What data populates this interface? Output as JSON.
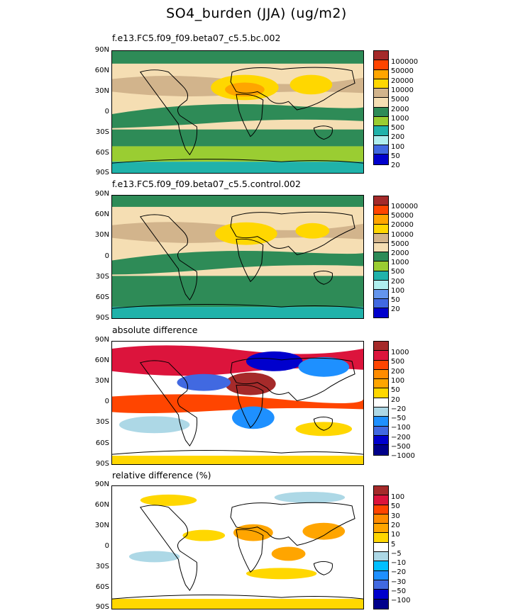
{
  "title": "SO4_burden (JJA) (ug/m2)",
  "lat_labels": [
    "90N",
    "60N",
    "30N",
    "0",
    "30S",
    "60S",
    "90S"
  ],
  "panels": [
    {
      "title": "f.e13.FC5.f09_f09.beta07_c5.5.bc.002",
      "levels": [
        "100000",
        "50000",
        "20000",
        "10000",
        "5000",
        "2000",
        "1000",
        "500",
        "200",
        "100",
        "50",
        "20"
      ],
      "colors": [
        "#a52a2a",
        "#ff4500",
        "#ffa500",
        "#ffd700",
        "#d2b48c",
        "#f5deb3",
        "#2e8b57",
        "#9acd32",
        "#20b2aa",
        "#afeeee",
        "#4169e1",
        "#0000cd"
      ],
      "base_color": "#f5deb3"
    },
    {
      "title": "f.e13.FC5.f09_f09.beta07_c5.5.control.002",
      "levels": [
        "100000",
        "50000",
        "20000",
        "10000",
        "5000",
        "2000",
        "1000",
        "500",
        "200",
        "100",
        "50",
        "20"
      ],
      "colors": [
        "#a52a2a",
        "#ff4500",
        "#ffa500",
        "#ffd700",
        "#d2b48c",
        "#f5deb3",
        "#2e8b57",
        "#9acd32",
        "#20b2aa",
        "#afeeee",
        "#6495ed",
        "#4169e1",
        "#0000cd"
      ],
      "base_color": "#f5deb3"
    },
    {
      "title": "absolute difference",
      "levels": [
        "1000",
        "500",
        "200",
        "100",
        "50",
        "20",
        "−20",
        "−50",
        "−100",
        "−200",
        "−500",
        "−1000"
      ],
      "colors": [
        "#a52a2a",
        "#dc143c",
        "#ff4500",
        "#ff8c00",
        "#ffa500",
        "#ffd700",
        "#ffffff",
        "#add8e6",
        "#1e90ff",
        "#4169e1",
        "#0000cd",
        "#00008b"
      ],
      "base_color": "#ffffff"
    },
    {
      "title": "relative difference (%)",
      "levels": [
        "100",
        "50",
        "30",
        "20",
        "10",
        "5",
        "−5",
        "−10",
        "−20",
        "−30",
        "−50",
        "−100"
      ],
      "colors": [
        "#a52a2a",
        "#dc143c",
        "#ff4500",
        "#ff8c00",
        "#ffa500",
        "#ffd700",
        "#ffffff",
        "#add8e6",
        "#00bfff",
        "#1e90ff",
        "#4169e1",
        "#0000cd",
        "#00008b"
      ],
      "base_color": "#ffffff"
    }
  ]
}
